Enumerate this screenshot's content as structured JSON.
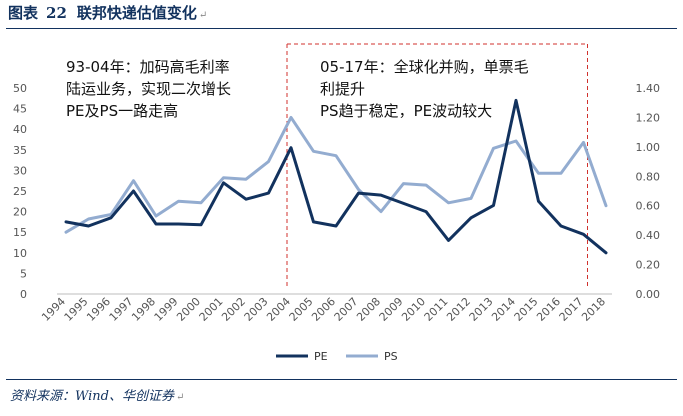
{
  "figure": {
    "label": "图表",
    "number": "22",
    "title": "联邦快递估值变化"
  },
  "source": "资料来源：Wind、华创证券",
  "annotations": [
    {
      "lines": [
        "93-04年：加码高毛利率",
        "陆运业务，实现二次增长",
        "PE及PS一路走高"
      ]
    },
    {
      "lines": [
        "05-17年：全球化并购，单票毛",
        "利提升",
        "PS趋于稳定，PE波动较大"
      ]
    }
  ],
  "colors": {
    "pe": "#12325e",
    "ps": "#93acd0",
    "title": "#12325e",
    "divider": "#d0312d"
  },
  "chart_data": {
    "type": "line",
    "categories": [
      "1994",
      "1995",
      "1996",
      "1997",
      "1998",
      "1999",
      "2000",
      "2001",
      "2002",
      "2003",
      "2004",
      "2005",
      "2006",
      "2007",
      "2008",
      "2009",
      "2010",
      "2011",
      "2012",
      "2013",
      "2014",
      "2015",
      "2016",
      "2017",
      "2018"
    ],
    "series": [
      {
        "name": "PE",
        "axis": "left",
        "values": [
          17.5,
          16.5,
          18.5,
          25,
          17,
          17,
          16.8,
          27,
          23,
          24.5,
          35.5,
          17.5,
          16.5,
          24.5,
          24,
          22,
          20,
          13,
          18.5,
          21.5,
          47,
          22.5,
          16.5,
          14.5,
          10
        ]
      },
      {
        "name": "PS",
        "axis": "right",
        "values": [
          0.42,
          0.51,
          0.54,
          0.77,
          0.53,
          0.63,
          0.62,
          0.79,
          0.78,
          0.9,
          1.2,
          0.97,
          0.94,
          0.71,
          0.56,
          0.75,
          0.74,
          0.62,
          0.65,
          0.99,
          1.04,
          0.82,
          0.82,
          1.03,
          0.6
        ]
      }
    ],
    "left_axis": {
      "min": 0,
      "max": 50,
      "ticks": [
        "0",
        "5",
        "10",
        "15",
        "20",
        "25",
        "30",
        "35",
        "40",
        "45",
        "50"
      ]
    },
    "right_axis": {
      "min": 0,
      "max": 1.4,
      "ticks": [
        "0.00",
        "0.20",
        "0.40",
        "0.60",
        "0.80",
        "1.00",
        "1.20",
        "1.40"
      ]
    },
    "divider_periods": [
      {
        "from": "2004",
        "to": "2017"
      }
    ],
    "legend": {
      "position": "bottom",
      "entries": [
        "PE",
        "PS"
      ]
    },
    "grid": false
  }
}
